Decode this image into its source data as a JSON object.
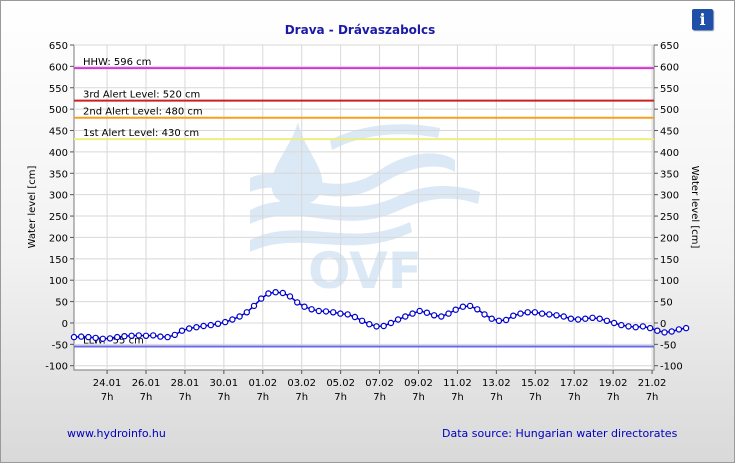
{
  "chart_data": {
    "type": "line",
    "title": "Drava - Drávaszabolcs",
    "ylabel": "Water level [cm]",
    "ylabel_right": "Water level [cm]",
    "ylim": [
      -110,
      650
    ],
    "yticks": [
      -100,
      -50,
      0,
      50,
      100,
      150,
      200,
      250,
      300,
      350,
      400,
      450,
      500,
      550,
      600,
      650
    ],
    "x_ticks": [
      {
        "date": "24.01",
        "hour": "7h"
      },
      {
        "date": "26.01",
        "hour": "7h"
      },
      {
        "date": "28.01",
        "hour": "7h"
      },
      {
        "date": "30.01",
        "hour": "7h"
      },
      {
        "date": "01.02",
        "hour": "7h"
      },
      {
        "date": "03.02",
        "hour": "7h"
      },
      {
        "date": "05.02",
        "hour": "7h"
      },
      {
        "date": "07.02",
        "hour": "7h"
      },
      {
        "date": "09.02",
        "hour": "7h"
      },
      {
        "date": "11.02",
        "hour": "7h"
      },
      {
        "date": "13.02",
        "hour": "7h"
      },
      {
        "date": "15.02",
        "hour": "7h"
      },
      {
        "date": "17.02",
        "hour": "7h"
      },
      {
        "date": "19.02",
        "hour": "7h"
      },
      {
        "date": "21.02",
        "hour": "7h"
      }
    ],
    "x_range_days": [
      -1.7,
      28.1
    ],
    "x_tick_days": [
      0,
      2,
      4,
      6,
      8,
      10,
      12,
      14,
      16,
      18,
      20,
      22,
      24,
      26,
      28
    ],
    "thresholds": [
      {
        "label": "HHW: 596 cm",
        "value": 596,
        "color": "#d633d6"
      },
      {
        "label": "3rd Alert Level: 520 cm",
        "value": 520,
        "color": "#cc2020"
      },
      {
        "label": "2nd Alert Level: 480 cm",
        "value": 480,
        "color": "#f5a020"
      },
      {
        "label": "1st Alert Level: 430 cm",
        "value": 430,
        "color": "#eeee80"
      },
      {
        "label": "LLW: -55 cm",
        "value": -55,
        "color": "#6a6ae8"
      }
    ],
    "series": [
      {
        "color": "#0000cc",
        "points": [
          [
            -1.7,
            -33
          ],
          [
            -1.33,
            -32
          ],
          [
            -0.96,
            -33
          ],
          [
            -0.59,
            -35
          ],
          [
            -0.22,
            -37
          ],
          [
            0.15,
            -36
          ],
          [
            0.52,
            -33
          ],
          [
            0.89,
            -31
          ],
          [
            1.26,
            -30
          ],
          [
            1.63,
            -29
          ],
          [
            2.0,
            -30
          ],
          [
            2.37,
            -29
          ],
          [
            2.74,
            -32
          ],
          [
            3.11,
            -33
          ],
          [
            3.48,
            -28
          ],
          [
            3.85,
            -18
          ],
          [
            4.22,
            -13
          ],
          [
            4.59,
            -10
          ],
          [
            4.96,
            -7
          ],
          [
            5.33,
            -5
          ],
          [
            5.7,
            -2
          ],
          [
            6.07,
            2
          ],
          [
            6.44,
            8
          ],
          [
            6.81,
            15
          ],
          [
            7.18,
            25
          ],
          [
            7.55,
            40
          ],
          [
            7.92,
            57
          ],
          [
            8.29,
            69
          ],
          [
            8.66,
            72
          ],
          [
            9.03,
            70
          ],
          [
            9.4,
            62
          ],
          [
            9.77,
            48
          ],
          [
            10.14,
            38
          ],
          [
            10.51,
            32
          ],
          [
            10.88,
            28
          ],
          [
            11.25,
            27
          ],
          [
            11.62,
            25
          ],
          [
            11.99,
            22
          ],
          [
            12.36,
            20
          ],
          [
            12.73,
            14
          ],
          [
            13.1,
            5
          ],
          [
            13.47,
            -3
          ],
          [
            13.84,
            -8
          ],
          [
            14.21,
            -7
          ],
          [
            14.58,
            0
          ],
          [
            14.95,
            8
          ],
          [
            15.32,
            15
          ],
          [
            15.69,
            22
          ],
          [
            16.06,
            28
          ],
          [
            16.43,
            24
          ],
          [
            16.8,
            18
          ],
          [
            17.17,
            15
          ],
          [
            17.54,
            22
          ],
          [
            17.91,
            31
          ],
          [
            18.28,
            38
          ],
          [
            18.65,
            40
          ],
          [
            19.02,
            32
          ],
          [
            19.39,
            20
          ],
          [
            19.76,
            10
          ],
          [
            20.13,
            5
          ],
          [
            20.5,
            7
          ],
          [
            20.87,
            17
          ],
          [
            21.24,
            22
          ],
          [
            21.61,
            25
          ],
          [
            21.98,
            25
          ],
          [
            22.35,
            22
          ],
          [
            22.72,
            20
          ],
          [
            23.09,
            18
          ],
          [
            23.46,
            15
          ],
          [
            23.83,
            10
          ],
          [
            24.2,
            8
          ],
          [
            24.57,
            10
          ],
          [
            24.94,
            12
          ],
          [
            25.31,
            10
          ],
          [
            25.68,
            5
          ],
          [
            26.05,
            0
          ],
          [
            26.42,
            -5
          ],
          [
            26.79,
            -8
          ],
          [
            27.16,
            -10
          ],
          [
            27.53,
            -8
          ],
          [
            27.9,
            -12
          ],
          [
            28.27,
            -18
          ],
          [
            28.64,
            -22
          ],
          [
            29.01,
            -20
          ],
          [
            29.38,
            -15
          ],
          [
            29.75,
            -12
          ]
        ]
      }
    ],
    "watermark": "OVF"
  },
  "footer": {
    "left": "www.hydroinfo.hu",
    "right": "Data source: Hungarian water directorates"
  },
  "info_button": "i"
}
